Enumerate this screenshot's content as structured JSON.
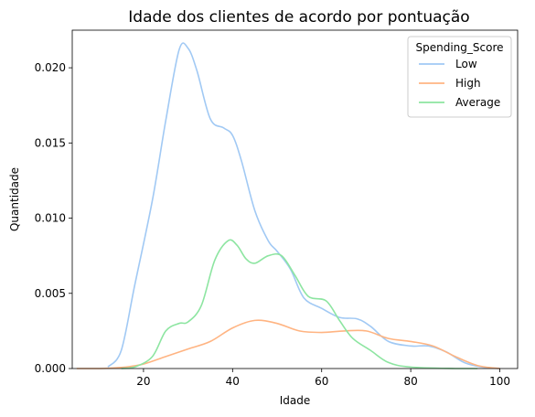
{
  "chart_data": {
    "type": "line",
    "title": "Idade dos clientes de acordo por pontuação",
    "xlabel": "Idade",
    "ylabel": "Quantidade",
    "xlim": [
      4,
      104
    ],
    "ylim": [
      0,
      0.0225
    ],
    "xticks": [
      20,
      40,
      60,
      80,
      100
    ],
    "yticks": [
      0.0,
      0.005,
      0.01,
      0.015,
      0.02
    ],
    "ytick_labels": [
      "0.000",
      "0.005",
      "0.010",
      "0.015",
      "0.020"
    ],
    "grid": false,
    "legend": {
      "title": "Spending_Score",
      "position": "top-right"
    },
    "series": [
      {
        "name": "Low",
        "color": "#a1c9f4",
        "points": [
          [
            12,
            0.0001
          ],
          [
            15,
            0.0012
          ],
          [
            18,
            0.0055
          ],
          [
            22,
            0.0112
          ],
          [
            25,
            0.0165
          ],
          [
            28,
            0.0212
          ],
          [
            30,
            0.0213
          ],
          [
            32,
            0.0198
          ],
          [
            35,
            0.0166
          ],
          [
            38,
            0.016
          ],
          [
            40,
            0.0155
          ],
          [
            42,
            0.0138
          ],
          [
            45,
            0.0105
          ],
          [
            48,
            0.0085
          ],
          [
            50,
            0.0078
          ],
          [
            53,
            0.0066
          ],
          [
            56,
            0.0047
          ],
          [
            60,
            0.004
          ],
          [
            64,
            0.0034
          ],
          [
            68,
            0.0033
          ],
          [
            71,
            0.0028
          ],
          [
            75,
            0.0018
          ],
          [
            80,
            0.0015
          ],
          [
            84,
            0.0015
          ],
          [
            88,
            0.0011
          ],
          [
            92,
            0.0004
          ],
          [
            96,
            0.0001
          ],
          [
            100,
            0.0
          ]
        ]
      },
      {
        "name": "High",
        "color": "#ffb482",
        "points": [
          [
            5,
            0.0
          ],
          [
            10,
            0.0
          ],
          [
            16,
            0.0001
          ],
          [
            20,
            0.0003
          ],
          [
            25,
            0.0008
          ],
          [
            30,
            0.0013
          ],
          [
            35,
            0.0018
          ],
          [
            40,
            0.0027
          ],
          [
            45,
            0.0032
          ],
          [
            50,
            0.003
          ],
          [
            55,
            0.0025
          ],
          [
            60,
            0.0024
          ],
          [
            65,
            0.0025
          ],
          [
            70,
            0.0025
          ],
          [
            75,
            0.002
          ],
          [
            80,
            0.0018
          ],
          [
            85,
            0.0015
          ],
          [
            90,
            0.0008
          ],
          [
            95,
            0.0002
          ],
          [
            100,
            0.0
          ]
        ]
      },
      {
        "name": "Average",
        "color": "#8de5a1",
        "points": [
          [
            15,
            0.0
          ],
          [
            18,
            0.0001
          ],
          [
            22,
            0.0008
          ],
          [
            25,
            0.0025
          ],
          [
            28,
            0.003
          ],
          [
            30,
            0.0031
          ],
          [
            33,
            0.0042
          ],
          [
            36,
            0.0072
          ],
          [
            39,
            0.0085
          ],
          [
            41,
            0.0082
          ],
          [
            43,
            0.0073
          ],
          [
            45,
            0.007
          ],
          [
            48,
            0.0075
          ],
          [
            51,
            0.0075
          ],
          [
            54,
            0.0062
          ],
          [
            57,
            0.0048
          ],
          [
            61,
            0.0045
          ],
          [
            64,
            0.0032
          ],
          [
            67,
            0.002
          ],
          [
            71,
            0.0012
          ],
          [
            75,
            0.0004
          ],
          [
            80,
            0.0001
          ],
          [
            90,
            0.0
          ],
          [
            95,
            0.0
          ]
        ]
      }
    ]
  }
}
